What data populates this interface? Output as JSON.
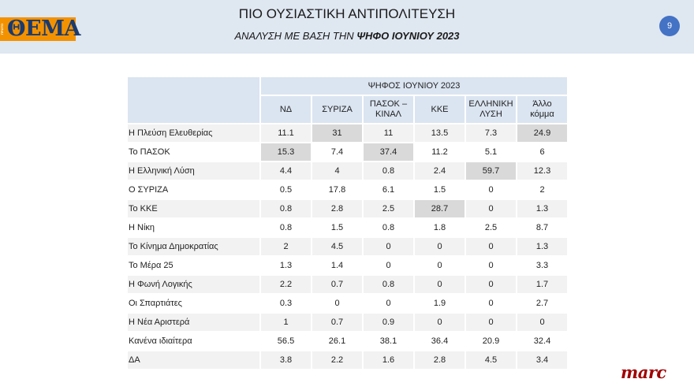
{
  "header": {
    "logo_small": "ΠΡΩΤΟ",
    "logo_text": "ΘΕΜΑ",
    "title": "ΠΙΟ ΟΥΣΙΑΣΤΙΚΗ ΑΝΤΙΠΟΛΙΤΕΥΣΗ",
    "subtitle_prefix": "ΑΝΑΛΥΣΗ ΜΕ ΒΑΣΗ ΤΗΝ ",
    "subtitle_bold": "ΨΗΦΟ ΙΟΥΝΙΟΥ 2023",
    "page_number": "9"
  },
  "table": {
    "group_header": "ΨΗΦΟΣ ΙΟΥΝΙΟΥ 2023",
    "columns": [
      [
        "ΝΔ"
      ],
      [
        "ΣΥΡΙΖΑ"
      ],
      [
        "ΠΑΣΟΚ –",
        "ΚΙΝΑΛ"
      ],
      [
        "ΚΚΕ"
      ],
      [
        "ΕΛΛΗΝΙΚΗ",
        "ΛΥΣΗ"
      ],
      [
        "Άλλο",
        "κόμμα"
      ]
    ],
    "rows": [
      {
        "label": "Η Πλεύση Ελευθερίας",
        "values": [
          "11.1",
          "31",
          "11",
          "13.5",
          "7.3",
          "24.9"
        ],
        "highlight": [
          1,
          5
        ]
      },
      {
        "label": "Το ΠΑΣΟΚ",
        "values": [
          "15.3",
          "7.4",
          "37.4",
          "11.2",
          "5.1",
          "6"
        ],
        "highlight": [
          0,
          2
        ]
      },
      {
        "label": "Η Ελληνική Λύση",
        "values": [
          "4.4",
          "4",
          "0.8",
          "2.4",
          "59.7",
          "12.3"
        ],
        "highlight": [
          4
        ]
      },
      {
        "label": "Ο ΣΥΡΙΖΑ",
        "values": [
          "0.5",
          "17.8",
          "6.1",
          "1.5",
          "0",
          "2"
        ],
        "highlight": []
      },
      {
        "label": "Το ΚΚΕ",
        "values": [
          "0.8",
          "2.8",
          "2.5",
          "28.7",
          "0",
          "1.3"
        ],
        "highlight": [
          3
        ]
      },
      {
        "label": "Η Νίκη",
        "values": [
          "0.8",
          "1.5",
          "0.8",
          "1.8",
          "2.5",
          "8.7"
        ],
        "highlight": []
      },
      {
        "label": "Το Κίνημα Δημοκρατίας",
        "values": [
          "2",
          "4.5",
          "0",
          "0",
          "0",
          "1.3"
        ],
        "highlight": []
      },
      {
        "label": "Το Μέρα 25",
        "values": [
          "1.3",
          "1.4",
          "0",
          "0",
          "0",
          "3.3"
        ],
        "highlight": []
      },
      {
        "label": "Η Φωνή Λογικής",
        "values": [
          "2.2",
          "0.7",
          "0.8",
          "0",
          "0",
          "1.7"
        ],
        "highlight": []
      },
      {
        "label": "Οι Σπαρτιάτες",
        "values": [
          "0.3",
          "0",
          "0",
          "1.9",
          "0",
          "2.7"
        ],
        "highlight": []
      },
      {
        "label": "Η Νέα Αριστερά",
        "values": [
          "1",
          "0.7",
          "0.9",
          "0",
          "0",
          "0"
        ],
        "highlight": []
      },
      {
        "label": "Κανένα ιδιαίτερα",
        "values": [
          "56.5",
          "26.1",
          "38.1",
          "36.4",
          "20.9",
          "32.4"
        ],
        "highlight": []
      },
      {
        "label": "ΔΑ",
        "values": [
          "3.8",
          "2.2",
          "1.6",
          "2.8",
          "4.5",
          "3.4"
        ],
        "highlight": []
      }
    ]
  },
  "footer": {
    "brand": "marc",
    "brand_color": "#a00000"
  },
  "colors": {
    "header_bg": "#dfe7f1",
    "logo_bg": "#f39200",
    "logo_text": "#1c3b6e",
    "table_header_bg": "#dbe5f1",
    "row_stripe": "#f2f2f2",
    "highlight": "#d9d9d9",
    "badge": "#4472c4"
  }
}
